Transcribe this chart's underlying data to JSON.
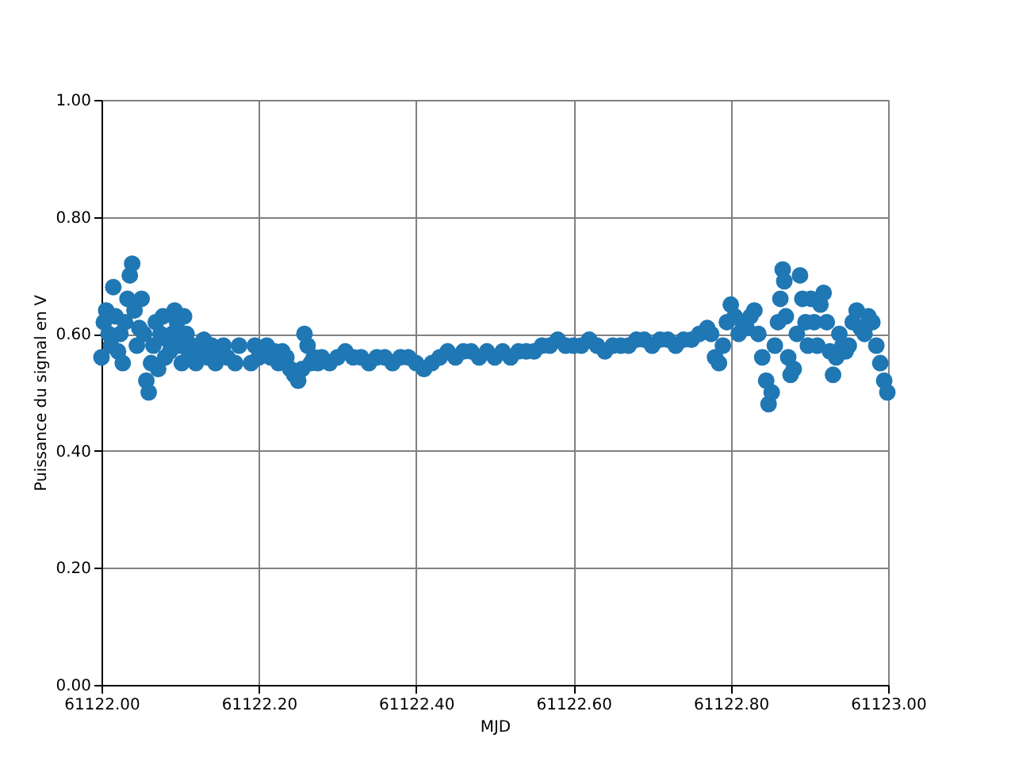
{
  "chart_data": {
    "type": "scatter",
    "xlabel": "MJD",
    "ylabel": "Puissance du signal en V",
    "x": [
      61122.0,
      61122.003,
      61122.006,
      61122.009,
      61122.012,
      61122.015,
      61122.018,
      61122.021,
      61122.024,
      61122.027,
      61122.03,
      61122.033,
      61122.036,
      61122.039,
      61122.042,
      61122.045,
      61122.048,
      61122.051,
      61122.054,
      61122.057,
      61122.06,
      61122.063,
      61122.066,
      61122.069,
      61122.072,
      61122.075,
      61122.078,
      61122.081,
      61122.084,
      61122.087,
      61122.09,
      61122.093,
      61122.096,
      61122.099,
      61122.102,
      61122.105,
      61122.108,
      61122.111,
      61122.115,
      61122.12,
      61122.125,
      61122.13,
      61122.135,
      61122.14,
      61122.145,
      61122.15,
      61122.155,
      61122.16,
      61122.17,
      61122.175,
      61122.19,
      61122.195,
      61122.2,
      61122.21,
      61122.215,
      61122.22,
      61122.225,
      61122.23,
      61122.235,
      61122.24,
      61122.245,
      61122.25,
      61122.255,
      61122.258,
      61122.262,
      61122.266,
      61122.27,
      61122.275,
      61122.28,
      61122.29,
      61122.3,
      61122.31,
      61122.32,
      61122.33,
      61122.34,
      61122.35,
      61122.36,
      61122.37,
      61122.38,
      61122.39,
      61122.4,
      61122.41,
      61122.42,
      61122.43,
      61122.44,
      61122.45,
      61122.46,
      61122.47,
      61122.48,
      61122.49,
      61122.5,
      61122.51,
      61122.52,
      61122.53,
      61122.54,
      61122.55,
      61122.56,
      61122.57,
      61122.58,
      61122.59,
      61122.6,
      61122.61,
      61122.62,
      61122.63,
      61122.64,
      61122.65,
      61122.66,
      61122.67,
      61122.68,
      61122.69,
      61122.7,
      61122.71,
      61122.72,
      61122.73,
      61122.74,
      61122.75,
      61122.76,
      61122.77,
      61122.775,
      61122.78,
      61122.785,
      61122.79,
      61122.795,
      61122.8,
      61122.805,
      61122.81,
      61122.815,
      61122.82,
      61122.825,
      61122.83,
      61122.835,
      61122.84,
      61122.845,
      61122.848,
      61122.852,
      61122.856,
      61122.86,
      61122.863,
      61122.866,
      61122.868,
      61122.87,
      61122.873,
      61122.876,
      61122.88,
      61122.884,
      61122.888,
      61122.891,
      61122.895,
      61122.898,
      61122.902,
      61122.906,
      61122.91,
      61122.914,
      61122.918,
      61122.922,
      61122.926,
      61122.93,
      61122.934,
      61122.938,
      61122.942,
      61122.946,
      61122.95,
      61122.955,
      61122.96,
      61122.965,
      61122.97,
      61122.975,
      61122.98,
      61122.985,
      61122.99,
      61122.995,
      61122.999
    ],
    "series": [
      {
        "color": "#1f77b4",
        "values": [
          0.56,
          0.62,
          0.64,
          0.6,
          0.58,
          0.68,
          0.63,
          0.57,
          0.6,
          0.55,
          0.62,
          0.66,
          0.7,
          0.72,
          0.64,
          0.58,
          0.61,
          0.66,
          0.6,
          0.52,
          0.5,
          0.55,
          0.58,
          0.62,
          0.54,
          0.6,
          0.63,
          0.56,
          0.59,
          0.57,
          0.6,
          0.64,
          0.62,
          0.58,
          0.55,
          0.63,
          0.6,
          0.57,
          0.58,
          0.55,
          0.57,
          0.59,
          0.56,
          0.58,
          0.55,
          0.57,
          0.58,
          0.56,
          0.55,
          0.58,
          0.55,
          0.58,
          0.56,
          0.58,
          0.56,
          0.57,
          0.55,
          0.57,
          0.56,
          0.54,
          0.53,
          0.52,
          0.54,
          0.6,
          0.58,
          0.55,
          0.56,
          0.55,
          0.56,
          0.55,
          0.56,
          0.57,
          0.56,
          0.56,
          0.55,
          0.56,
          0.56,
          0.55,
          0.56,
          0.56,
          0.55,
          0.54,
          0.55,
          0.56,
          0.57,
          0.56,
          0.57,
          0.57,
          0.56,
          0.57,
          0.56,
          0.57,
          0.56,
          0.57,
          0.57,
          0.57,
          0.58,
          0.58,
          0.59,
          0.58,
          0.58,
          0.58,
          0.59,
          0.58,
          0.57,
          0.58,
          0.58,
          0.58,
          0.59,
          0.59,
          0.58,
          0.59,
          0.59,
          0.58,
          0.59,
          0.59,
          0.6,
          0.61,
          0.6,
          0.56,
          0.55,
          0.58,
          0.62,
          0.65,
          0.63,
          0.6,
          0.62,
          0.61,
          0.63,
          0.64,
          0.6,
          0.56,
          0.52,
          0.48,
          0.5,
          0.58,
          0.62,
          0.66,
          0.71,
          0.69,
          0.63,
          0.56,
          0.53,
          0.54,
          0.6,
          0.7,
          0.66,
          0.62,
          0.58,
          0.66,
          0.62,
          0.58,
          0.65,
          0.67,
          0.62,
          0.57,
          0.53,
          0.56,
          0.6,
          0.58,
          0.57,
          0.58,
          0.62,
          0.64,
          0.61,
          0.6,
          0.63,
          0.62,
          0.58,
          0.55,
          0.52,
          0.5
        ]
      }
    ],
    "xlim": [
      61122.0,
      61123.0
    ],
    "xticks": [
      {
        "value": 61122.0,
        "label": "61122.00"
      },
      {
        "value": 61122.2,
        "label": "61122.20"
      },
      {
        "value": 61122.4,
        "label": "61122.40"
      },
      {
        "value": 61122.6,
        "label": "61122.60"
      },
      {
        "value": 61122.8,
        "label": "61122.80"
      },
      {
        "value": 61123.0,
        "label": "61123.00"
      }
    ],
    "ylim": [
      0,
      1
    ],
    "yticks": [
      {
        "value": 0,
        "label": "0.00"
      },
      {
        "value": 0.2,
        "label": "0.20"
      },
      {
        "value": 0.4,
        "label": "0.40"
      },
      {
        "value": 0.6,
        "label": "0.60"
      },
      {
        "value": 0.8,
        "label": "0.80"
      },
      {
        "value": 1,
        "label": "1.00"
      }
    ],
    "grid": true,
    "marker": "circle"
  }
}
